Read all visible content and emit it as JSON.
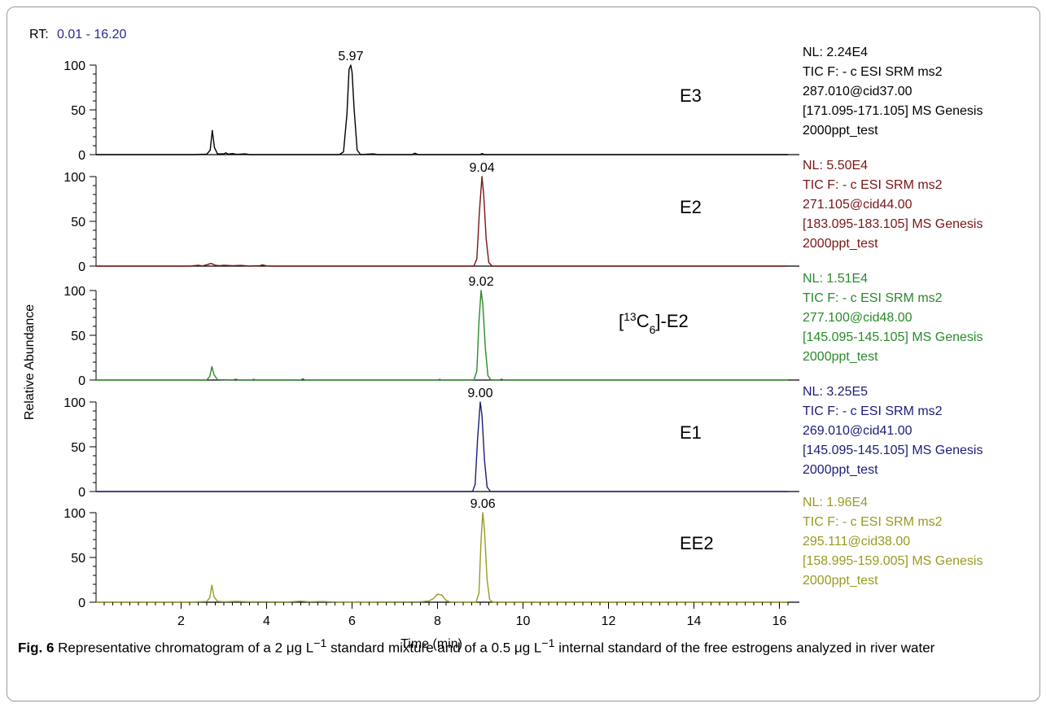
{
  "chart_data": {
    "type": "line",
    "rt_label": "RT:",
    "rt_range": "0.01 - 16.20",
    "xlabel": "Time (min)",
    "ylabel": "Relative Abundance",
    "xlim": [
      0.01,
      16.2
    ],
    "x_ticks": [
      2,
      4,
      6,
      8,
      10,
      12,
      14,
      16
    ],
    "ylim": [
      0,
      100
    ],
    "y_ticks": [
      0,
      50,
      100
    ],
    "panels": [
      {
        "name": "E3",
        "color": "#000000",
        "peak_label": "5.97",
        "peak_label_x": 5.97,
        "info": [
          "NL: 2.24E4",
          "TIC  F: - c ESI SRM ms2",
          "287.010@cid37.00",
          "[171.095-171.105]  MS  Genesis",
          "2000ppt_test"
        ],
        "points": [
          [
            0.01,
            0
          ],
          [
            2.3,
            0
          ],
          [
            2.6,
            0.5
          ],
          [
            2.68,
            5
          ],
          [
            2.73,
            27
          ],
          [
            2.78,
            8
          ],
          [
            2.85,
            1
          ],
          [
            3.0,
            0.8
          ],
          [
            3.05,
            2
          ],
          [
            3.1,
            0.5
          ],
          [
            3.2,
            1.2
          ],
          [
            3.3,
            0.3
          ],
          [
            3.5,
            0.8
          ],
          [
            3.6,
            0
          ],
          [
            5.7,
            0
          ],
          [
            5.8,
            3
          ],
          [
            5.88,
            45
          ],
          [
            5.93,
            95
          ],
          [
            5.97,
            100
          ],
          [
            6.0,
            92
          ],
          [
            6.05,
            50
          ],
          [
            6.12,
            5
          ],
          [
            6.2,
            0
          ],
          [
            6.5,
            0.8
          ],
          [
            6.6,
            0
          ],
          [
            7.4,
            0
          ],
          [
            7.47,
            1.5
          ],
          [
            7.55,
            0
          ],
          [
            9.0,
            0
          ],
          [
            9.04,
            1.2
          ],
          [
            9.1,
            0
          ],
          [
            16.2,
            0
          ]
        ]
      },
      {
        "name": "E2",
        "color": "#7a1515",
        "peak_label": "9.04",
        "peak_label_x": 9.04,
        "info": [
          "NL: 5.50E4",
          "TIC  F: - c ESI SRM ms2",
          "271.105@cid44.00",
          "[183.095-183.105]  MS  Genesis",
          "2000ppt_test"
        ],
        "points": [
          [
            0.01,
            0
          ],
          [
            2.2,
            0
          ],
          [
            2.4,
            1
          ],
          [
            2.5,
            0.3
          ],
          [
            2.6,
            1.5
          ],
          [
            2.7,
            3
          ],
          [
            2.8,
            1
          ],
          [
            2.9,
            0.5
          ],
          [
            3.0,
            1
          ],
          [
            3.2,
            0.5
          ],
          [
            3.4,
            0.8
          ],
          [
            3.6,
            0
          ],
          [
            3.85,
            0.5
          ],
          [
            3.9,
            1.5
          ],
          [
            4.0,
            0.3
          ],
          [
            4.1,
            0
          ],
          [
            8.85,
            0
          ],
          [
            8.92,
            8
          ],
          [
            8.98,
            60
          ],
          [
            9.04,
            100
          ],
          [
            9.08,
            80
          ],
          [
            9.14,
            30
          ],
          [
            9.2,
            4
          ],
          [
            9.28,
            0
          ],
          [
            16.2,
            0
          ]
        ]
      },
      {
        "name": "[13C6]-E2",
        "name_prefix": "[",
        "name_sup": "13",
        "name_mid": "C",
        "name_sub": "6",
        "name_suffix": "]-E2",
        "color": "#2a8a2a",
        "peak_label": "9.02",
        "peak_label_x": 9.02,
        "info": [
          "NL: 1.51E4",
          "TIC  F: - c ESI SRM ms2",
          "277.100@cid48.00",
          "[145.095-145.105]  MS  Genesis",
          "2000ppt_test"
        ],
        "points": [
          [
            0.01,
            0
          ],
          [
            2.6,
            0
          ],
          [
            2.67,
            4
          ],
          [
            2.72,
            15
          ],
          [
            2.77,
            6
          ],
          [
            2.85,
            0.5
          ],
          [
            3.2,
            0
          ],
          [
            3.28,
            1
          ],
          [
            3.35,
            0
          ],
          [
            3.65,
            0
          ],
          [
            3.7,
            0.8
          ],
          [
            3.75,
            0
          ],
          [
            4.8,
            0
          ],
          [
            4.85,
            1.5
          ],
          [
            4.9,
            0
          ],
          [
            8.0,
            0
          ],
          [
            8.05,
            0.8
          ],
          [
            8.1,
            0
          ],
          [
            8.85,
            0
          ],
          [
            8.92,
            10
          ],
          [
            8.97,
            65
          ],
          [
            9.02,
            100
          ],
          [
            9.06,
            85
          ],
          [
            9.12,
            35
          ],
          [
            9.18,
            5
          ],
          [
            9.25,
            0
          ],
          [
            9.45,
            0
          ],
          [
            9.5,
            1
          ],
          [
            9.55,
            0
          ],
          [
            16.2,
            0
          ]
        ]
      },
      {
        "name": "E1",
        "color": "#1c1c7a",
        "peak_label": "9.00",
        "peak_label_x": 9.0,
        "info": [
          "NL: 3.25E5",
          "TIC  F: - c ESI SRM ms2",
          "269.010@cid41.00",
          "[145.095-145.105]  MS  Genesis",
          "2000ppt_test"
        ],
        "points": [
          [
            0.01,
            0
          ],
          [
            8.82,
            0
          ],
          [
            8.88,
            8
          ],
          [
            8.94,
            60
          ],
          [
            9.0,
            100
          ],
          [
            9.04,
            85
          ],
          [
            9.1,
            35
          ],
          [
            9.16,
            5
          ],
          [
            9.24,
            0
          ],
          [
            16.2,
            0
          ]
        ]
      },
      {
        "name": "EE2",
        "color": "#9a9a20",
        "peak_label": "9.06",
        "peak_label_x": 9.06,
        "info": [
          "NL: 1.96E4",
          "TIC  F: - c ESI SRM ms2",
          "295.111@cid38.00",
          "[158.995-159.005]  MS  Genesis",
          "2000ppt_test"
        ],
        "points": [
          [
            0.01,
            0
          ],
          [
            2.2,
            0
          ],
          [
            2.4,
            0.5
          ],
          [
            2.6,
            0.8
          ],
          [
            2.67,
            5
          ],
          [
            2.72,
            19
          ],
          [
            2.77,
            6
          ],
          [
            2.85,
            1
          ],
          [
            3.0,
            0.5
          ],
          [
            3.3,
            1
          ],
          [
            3.6,
            0.5
          ],
          [
            4.0,
            0.5
          ],
          [
            4.5,
            0.3
          ],
          [
            4.8,
            1.2
          ],
          [
            5.0,
            0.5
          ],
          [
            5.3,
            0.8
          ],
          [
            5.6,
            0.3
          ],
          [
            6.0,
            0.2
          ],
          [
            7.6,
            0.5
          ],
          [
            7.8,
            1.5
          ],
          [
            7.9,
            4
          ],
          [
            8.0,
            9
          ],
          [
            8.1,
            8
          ],
          [
            8.2,
            2
          ],
          [
            8.3,
            0.3
          ],
          [
            8.9,
            0
          ],
          [
            8.97,
            10
          ],
          [
            9.02,
            70
          ],
          [
            9.06,
            100
          ],
          [
            9.1,
            80
          ],
          [
            9.16,
            25
          ],
          [
            9.22,
            3
          ],
          [
            9.3,
            0
          ],
          [
            16.2,
            0
          ]
        ]
      }
    ]
  },
  "caption": {
    "fig_label": "Fig. 6",
    "text_1": " Representative chromatogram of a 2 μg L",
    "sup_1": "−1",
    "text_2": " standard mixture and of a 0.5 μg L",
    "sup_2": "−1",
    "text_3": " internal standard of the free estrogens analyzed in river water"
  }
}
